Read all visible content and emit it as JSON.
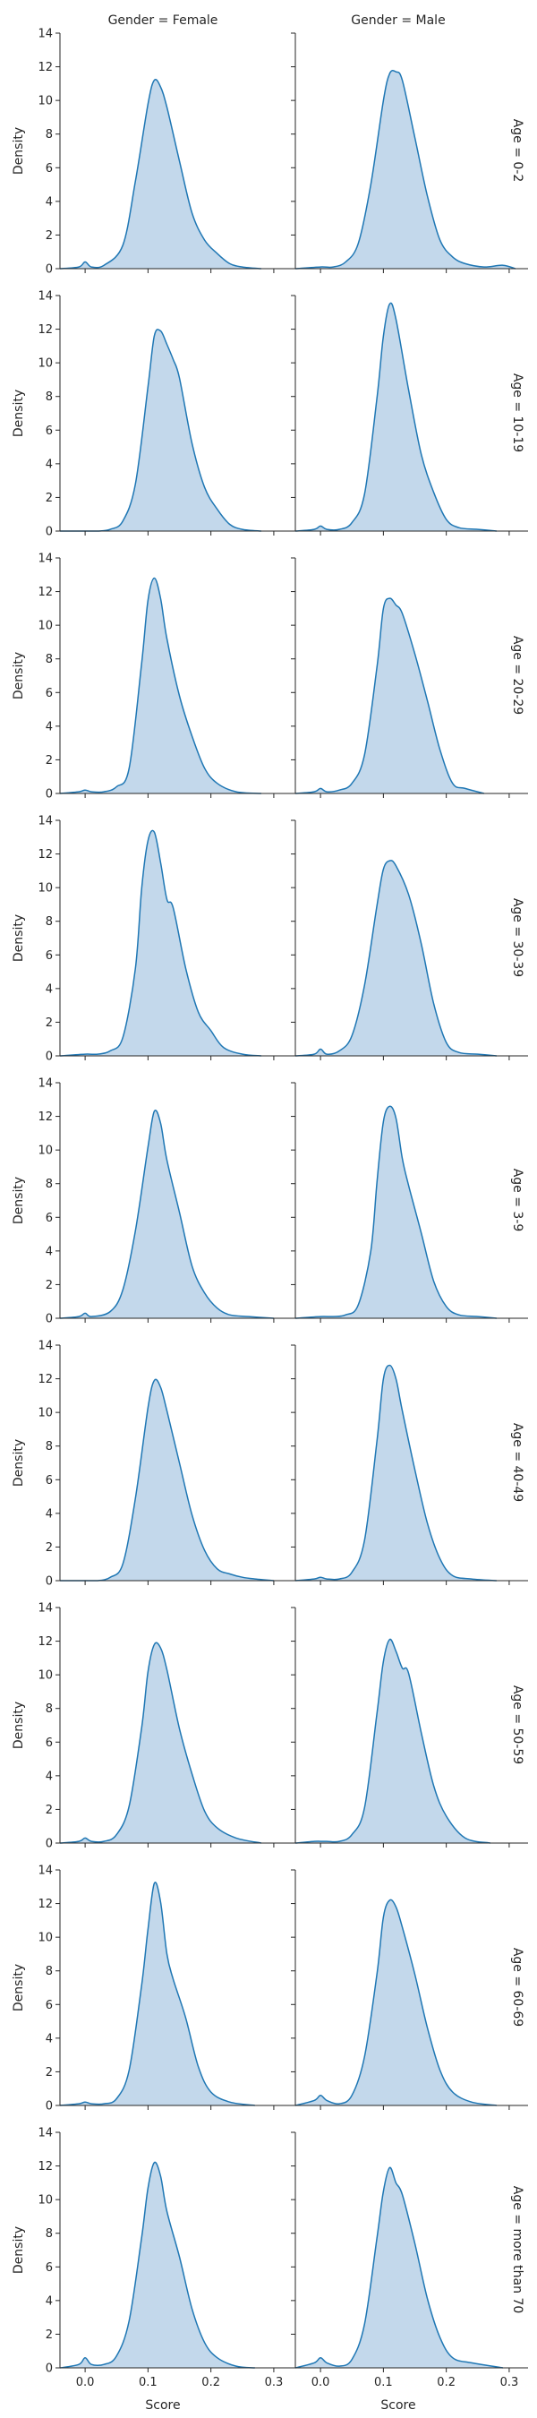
{
  "chart_data": {
    "type": "area",
    "subtype": "kde-facet-grid",
    "xlabel": "Score",
    "ylabel": "Density",
    "xlim": [
      -0.04,
      0.33
    ],
    "ylim": [
      0,
      14
    ],
    "x_ticks": [
      0.0,
      0.1,
      0.2,
      0.3
    ],
    "x_tick_labels": [
      "0.0",
      "0.1",
      "0.2",
      "0.3"
    ],
    "y_ticks": [
      0,
      2,
      4,
      6,
      8,
      10,
      12,
      14
    ],
    "y_tick_labels": [
      "0",
      "2",
      "4",
      "6",
      "8",
      "10",
      "12",
      "14"
    ],
    "grid": false,
    "fill_color": "#c3d8eb",
    "line_color": "#1f77b4",
    "columns": [
      "Gender = Female",
      "Gender = Male"
    ],
    "rows": [
      "Age = 0-2",
      "Age = 10-19",
      "Age = 20-29",
      "Age = 30-39",
      "Age = 3-9",
      "Age = 40-49",
      "Age = 50-59",
      "Age = 60-69",
      "Age = more than 70"
    ],
    "panels": [
      {
        "row": 0,
        "col": 0,
        "x": [
          -0.04,
          -0.01,
          0.0,
          0.01,
          0.03,
          0.06,
          0.08,
          0.1,
          0.11,
          0.12,
          0.13,
          0.15,
          0.17,
          0.19,
          0.21,
          0.23,
          0.25,
          0.28
        ],
        "y": [
          0,
          0.1,
          0.4,
          0.1,
          0.2,
          1.4,
          5.2,
          9.8,
          11.2,
          10.8,
          9.6,
          6.4,
          3.3,
          1.7,
          0.9,
          0.3,
          0.1,
          0
        ]
      },
      {
        "row": 0,
        "col": 1,
        "x": [
          -0.04,
          0.0,
          0.02,
          0.04,
          0.06,
          0.08,
          0.1,
          0.11,
          0.12,
          0.13,
          0.15,
          0.17,
          0.19,
          0.21,
          0.23,
          0.26,
          0.29,
          0.31
        ],
        "y": [
          0,
          0.1,
          0.1,
          0.4,
          1.5,
          5.0,
          10.0,
          11.6,
          11.7,
          11.2,
          7.8,
          4.3,
          1.7,
          0.7,
          0.3,
          0.1,
          0.2,
          0
        ]
      },
      {
        "row": 1,
        "col": 0,
        "x": [
          -0.04,
          0.0,
          0.02,
          0.04,
          0.06,
          0.08,
          0.1,
          0.11,
          0.12,
          0.13,
          0.14,
          0.15,
          0.17,
          0.19,
          0.21,
          0.23,
          0.25,
          0.28
        ],
        "y": [
          0,
          0,
          0,
          0.1,
          0.6,
          2.8,
          8.6,
          11.6,
          11.9,
          11.1,
          10.2,
          9.1,
          5.2,
          2.6,
          1.3,
          0.4,
          0.1,
          0
        ]
      },
      {
        "row": 1,
        "col": 1,
        "x": [
          -0.04,
          -0.01,
          0.0,
          0.01,
          0.03,
          0.05,
          0.07,
          0.09,
          0.1,
          0.11,
          0.12,
          0.14,
          0.16,
          0.18,
          0.2,
          0.22,
          0.25,
          0.28
        ],
        "y": [
          0,
          0.1,
          0.3,
          0.1,
          0.1,
          0.5,
          2.2,
          8.0,
          11.6,
          13.5,
          12.6,
          8.4,
          4.6,
          2.3,
          0.7,
          0.2,
          0.1,
          0
        ]
      },
      {
        "row": 2,
        "col": 0,
        "x": [
          -0.04,
          -0.01,
          0.0,
          0.01,
          0.03,
          0.05,
          0.07,
          0.09,
          0.1,
          0.11,
          0.12,
          0.13,
          0.15,
          0.17,
          0.19,
          0.21,
          0.24,
          0.28
        ],
        "y": [
          0,
          0.1,
          0.2,
          0.1,
          0.1,
          0.4,
          1.5,
          7.8,
          11.5,
          12.8,
          11.6,
          9.2,
          5.8,
          3.4,
          1.5,
          0.6,
          0.1,
          0
        ]
      },
      {
        "row": 2,
        "col": 1,
        "x": [
          -0.04,
          -0.01,
          0.0,
          0.01,
          0.03,
          0.05,
          0.07,
          0.09,
          0.1,
          0.11,
          0.12,
          0.13,
          0.15,
          0.17,
          0.19,
          0.21,
          0.23,
          0.26
        ],
        "y": [
          0,
          0.1,
          0.3,
          0.1,
          0.2,
          0.6,
          2.3,
          7.6,
          11.0,
          11.6,
          11.2,
          10.7,
          8.3,
          5.5,
          2.6,
          0.6,
          0.3,
          0
        ]
      },
      {
        "row": 3,
        "col": 0,
        "x": [
          -0.04,
          0.0,
          0.02,
          0.04,
          0.06,
          0.08,
          0.09,
          0.1,
          0.11,
          0.12,
          0.13,
          0.14,
          0.16,
          0.18,
          0.2,
          0.22,
          0.25,
          0.28
        ],
        "y": [
          0,
          0.1,
          0.1,
          0.3,
          1.1,
          5.2,
          10.0,
          12.8,
          13.3,
          11.5,
          9.3,
          8.8,
          5.2,
          2.6,
          1.5,
          0.5,
          0.1,
          0
        ]
      },
      {
        "row": 3,
        "col": 1,
        "x": [
          -0.04,
          -0.01,
          0.0,
          0.01,
          0.03,
          0.05,
          0.07,
          0.09,
          0.1,
          0.11,
          0.12,
          0.14,
          0.16,
          0.18,
          0.2,
          0.22,
          0.25,
          0.28
        ],
        "y": [
          0,
          0.1,
          0.4,
          0.1,
          0.3,
          1.2,
          4.2,
          9.0,
          11.1,
          11.6,
          11.3,
          9.6,
          6.7,
          3.1,
          0.8,
          0.2,
          0.1,
          0
        ]
      },
      {
        "row": 4,
        "col": 0,
        "x": [
          -0.04,
          -0.01,
          0.0,
          0.01,
          0.04,
          0.06,
          0.08,
          0.1,
          0.11,
          0.12,
          0.13,
          0.15,
          0.17,
          0.19,
          0.21,
          0.23,
          0.26,
          0.3
        ],
        "y": [
          0,
          0.1,
          0.3,
          0.1,
          0.4,
          1.7,
          5.2,
          10.2,
          12.3,
          11.6,
          9.4,
          6.3,
          3.1,
          1.5,
          0.6,
          0.2,
          0.1,
          0
        ]
      },
      {
        "row": 4,
        "col": 1,
        "x": [
          -0.04,
          0.0,
          0.02,
          0.04,
          0.06,
          0.08,
          0.09,
          0.1,
          0.11,
          0.12,
          0.13,
          0.14,
          0.16,
          0.18,
          0.2,
          0.22,
          0.25,
          0.28
        ],
        "y": [
          0,
          0.1,
          0.1,
          0.2,
          0.8,
          4.0,
          8.2,
          11.7,
          12.6,
          11.9,
          9.5,
          7.9,
          5.1,
          2.2,
          0.7,
          0.2,
          0.1,
          0
        ]
      },
      {
        "row": 5,
        "col": 0,
        "x": [
          -0.04,
          0.0,
          0.02,
          0.04,
          0.06,
          0.08,
          0.1,
          0.11,
          0.12,
          0.13,
          0.15,
          0.17,
          0.19,
          0.21,
          0.23,
          0.25,
          0.27,
          0.3
        ],
        "y": [
          0,
          0,
          0,
          0.2,
          1.0,
          4.9,
          10.3,
          11.9,
          11.5,
          10.1,
          7.0,
          3.9,
          1.8,
          0.7,
          0.4,
          0.2,
          0.1,
          0
        ]
      },
      {
        "row": 5,
        "col": 1,
        "x": [
          -0.04,
          -0.01,
          0.0,
          0.01,
          0.03,
          0.05,
          0.07,
          0.09,
          0.1,
          0.11,
          0.12,
          0.13,
          0.15,
          0.17,
          0.19,
          0.21,
          0.24,
          0.28
        ],
        "y": [
          0,
          0.1,
          0.2,
          0.1,
          0.1,
          0.5,
          2.4,
          8.4,
          12.0,
          12.8,
          12.0,
          10.1,
          6.6,
          3.4,
          1.3,
          0.3,
          0.1,
          0
        ]
      },
      {
        "row": 6,
        "col": 0,
        "x": [
          -0.04,
          -0.01,
          0.0,
          0.01,
          0.03,
          0.05,
          0.07,
          0.09,
          0.1,
          0.11,
          0.12,
          0.13,
          0.15,
          0.17,
          0.19,
          0.21,
          0.24,
          0.28
        ],
        "y": [
          0,
          0.1,
          0.3,
          0.1,
          0.1,
          0.5,
          2.2,
          6.9,
          10.2,
          11.8,
          11.6,
          10.3,
          6.8,
          4.1,
          1.9,
          0.9,
          0.3,
          0
        ]
      },
      {
        "row": 6,
        "col": 1,
        "x": [
          -0.04,
          -0.01,
          0.0,
          0.01,
          0.03,
          0.05,
          0.07,
          0.09,
          0.1,
          0.11,
          0.12,
          0.13,
          0.14,
          0.16,
          0.18,
          0.2,
          0.23,
          0.27
        ],
        "y": [
          0,
          0.1,
          0.1,
          0.1,
          0.1,
          0.5,
          2.1,
          7.8,
          10.8,
          12.1,
          11.4,
          10.4,
          10.1,
          6.6,
          3.4,
          1.6,
          0.3,
          0
        ]
      },
      {
        "row": 7,
        "col": 0,
        "x": [
          -0.04,
          -0.01,
          0.0,
          0.01,
          0.03,
          0.05,
          0.07,
          0.09,
          0.1,
          0.11,
          0.12,
          0.13,
          0.14,
          0.16,
          0.18,
          0.2,
          0.23,
          0.27
        ],
        "y": [
          0,
          0.1,
          0.2,
          0.1,
          0.1,
          0.4,
          2.1,
          7.2,
          10.5,
          13.2,
          12.1,
          9.0,
          7.5,
          5.2,
          2.3,
          0.8,
          0.2,
          0
        ]
      },
      {
        "row": 7,
        "col": 1,
        "x": [
          -0.04,
          -0.01,
          0.0,
          0.01,
          0.03,
          0.05,
          0.07,
          0.09,
          0.1,
          0.11,
          0.12,
          0.13,
          0.15,
          0.17,
          0.19,
          0.21,
          0.24,
          0.28
        ],
        "y": [
          0,
          0.3,
          0.6,
          0.3,
          0.1,
          0.6,
          2.9,
          7.9,
          11.2,
          12.2,
          11.8,
          10.6,
          7.8,
          4.6,
          2.1,
          0.8,
          0.2,
          0
        ]
      },
      {
        "row": 8,
        "col": 0,
        "x": [
          -0.04,
          -0.01,
          0.0,
          0.01,
          0.03,
          0.05,
          0.07,
          0.09,
          0.1,
          0.11,
          0.12,
          0.13,
          0.15,
          0.17,
          0.19,
          0.21,
          0.24,
          0.27
        ],
        "y": [
          0,
          0.2,
          0.6,
          0.2,
          0.2,
          0.7,
          2.8,
          7.8,
          10.7,
          12.2,
          11.4,
          9.3,
          6.6,
          3.5,
          1.5,
          0.6,
          0.1,
          0
        ]
      },
      {
        "row": 8,
        "col": 1,
        "x": [
          -0.04,
          -0.01,
          0.0,
          0.01,
          0.03,
          0.05,
          0.07,
          0.09,
          0.1,
          0.11,
          0.12,
          0.13,
          0.15,
          0.17,
          0.19,
          0.21,
          0.24,
          0.29
        ],
        "y": [
          0,
          0.3,
          0.6,
          0.3,
          0.1,
          0.5,
          2.6,
          7.8,
          10.5,
          11.9,
          11.0,
          10.3,
          7.4,
          4.1,
          1.8,
          0.6,
          0.3,
          0
        ]
      }
    ]
  }
}
